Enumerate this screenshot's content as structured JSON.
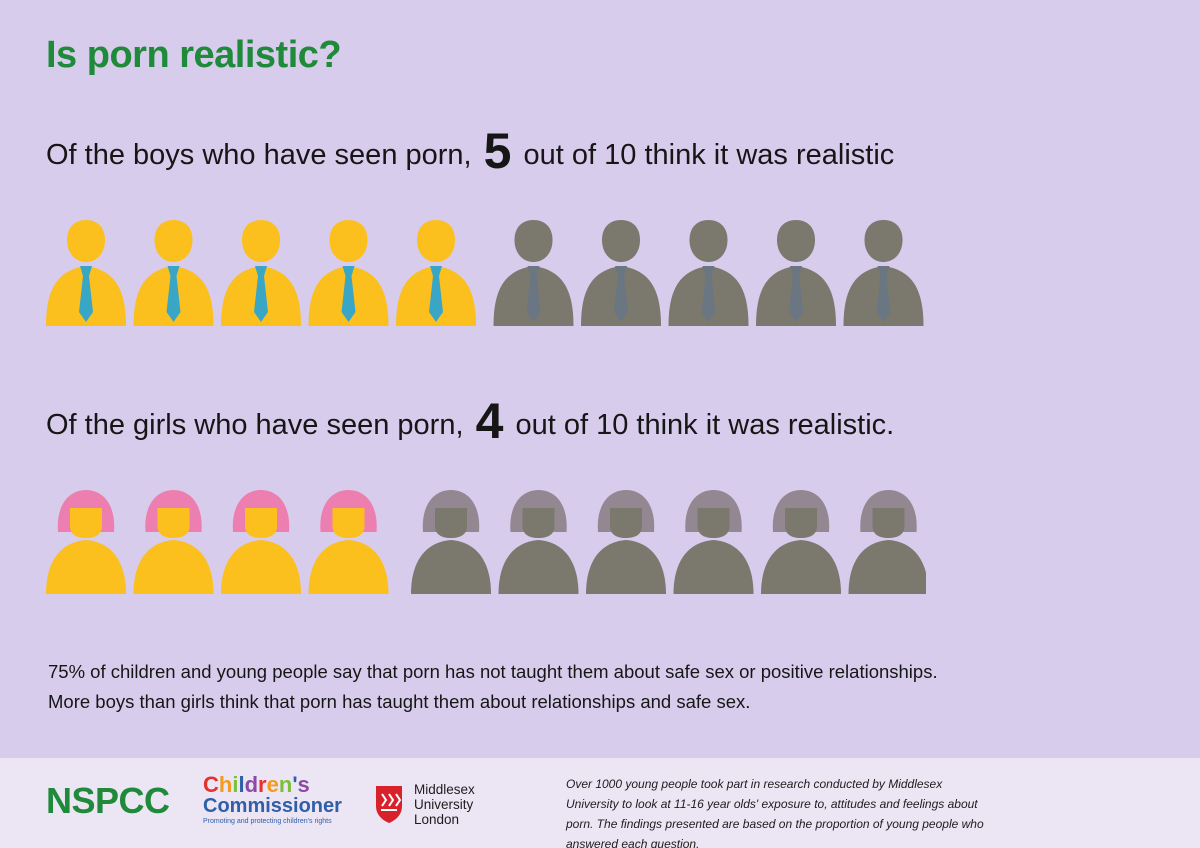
{
  "title": "Is porn realistic?",
  "boys": {
    "prefix": "Of the boys who have seen porn,",
    "number": "5",
    "suffix": "out of 10 think it was realistic",
    "highlighted": 5,
    "total": 10
  },
  "girls": {
    "prefix": "Of the girls who have seen porn,",
    "number": "4",
    "suffix": "out of 10 think it was realistic.",
    "highlighted": 4,
    "total": 10
  },
  "notes": [
    "75% of children and young people say that porn has not taught them about safe sex or positive relationships.",
    "More boys than girls think that porn has taught them about relationships and safe sex."
  ],
  "footer": {
    "nspcc": "NSPCC",
    "childrens_commissioner": {
      "line1": "Children's",
      "line2": "Commissioner",
      "tagline": "Promoting and protecting children's rights"
    },
    "middlesex": {
      "line1": "Middlesex",
      "line2": "University",
      "line3": "London"
    },
    "note": "Over 1000 young people took part in research conducted by Middlesex University to look at 11-16 year olds' exposure to, attitudes and feelings about porn.  The findings presented are based on the proportion of young people who answered each question."
  },
  "colors": {
    "background": "#d8ccec",
    "title": "#1e8a3a",
    "highlight_body": "#fbbf1e",
    "highlight_tie": "#3aa6c6",
    "highlight_hair": "#ec7fb0",
    "muted_body": "#7b786e",
    "muted_tie": "#6a7682",
    "muted_hair": "#938791"
  }
}
